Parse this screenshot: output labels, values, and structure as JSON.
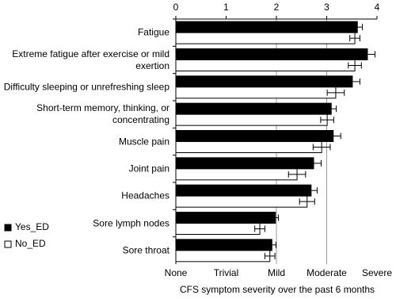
{
  "chart_data": {
    "type": "bar",
    "orientation": "horizontal",
    "x_label": "CFS symptom severity over the past 6 months",
    "categories": [
      "Fatigue",
      "Extreme fatigue after exercise or mild exertion",
      "Difficulty sleeping or unrefreshing sleep",
      "Short-term memory, thinking, or concentrating",
      "Muscle pain",
      "Joint pain",
      "Headaches",
      "Sore lymph nodes",
      "Sore throat"
    ],
    "series": [
      {
        "name": "Yes_ED",
        "color": "#000000",
        "values": [
          3.61,
          3.81,
          3.51,
          3.09,
          3.13,
          2.74,
          2.69,
          1.98,
          1.91
        ],
        "errors": [
          0.1,
          0.15,
          0.15,
          0.1,
          0.15,
          0.15,
          0.12,
          0.06,
          0.08
        ]
      },
      {
        "name": "No_ED",
        "color": "#ffffff",
        "values": [
          3.56,
          3.56,
          3.18,
          3.01,
          2.9,
          2.41,
          2.61,
          1.67,
          1.87
        ],
        "errors": [
          0.1,
          0.13,
          0.17,
          0.13,
          0.17,
          0.17,
          0.15,
          0.1,
          0.1
        ]
      }
    ],
    "xlim": [
      0,
      4
    ],
    "xticks": [
      0,
      1,
      2,
      3,
      4
    ],
    "x2ticks": [
      {
        "value": 0,
        "label": "None"
      },
      {
        "value": 1,
        "label": "Trivial"
      },
      {
        "value": 2,
        "label": "Mild"
      },
      {
        "value": 3,
        "label": "Moderate"
      },
      {
        "value": 4,
        "label": "Severe"
      }
    ],
    "grid_lines": [
      2,
      3
    ],
    "legend": "left"
  }
}
